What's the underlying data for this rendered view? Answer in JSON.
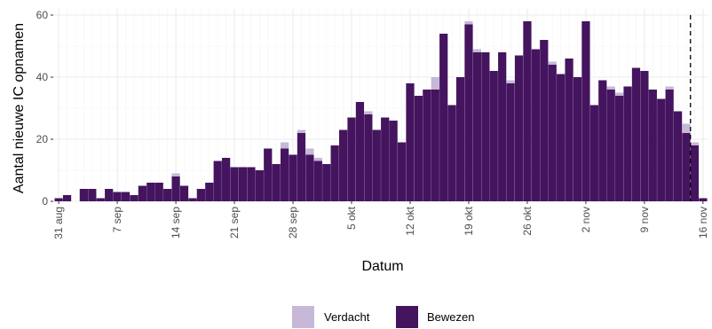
{
  "chart_data": {
    "type": "bar",
    "stacked": true,
    "xlabel": "Datum",
    "ylabel": "Aantal nieuwe IC opnamen",
    "ylim": [
      0,
      62
    ],
    "yticks": [
      0,
      20,
      40,
      60
    ],
    "grid": true,
    "legend_placement": "bottom",
    "x_start": "2020-08-31",
    "x_end": "2020-11-16",
    "x": [
      "2020-08-31",
      "2020-09-01",
      "2020-09-02",
      "2020-09-03",
      "2020-09-04",
      "2020-09-05",
      "2020-09-06",
      "2020-09-07",
      "2020-09-08",
      "2020-09-09",
      "2020-09-10",
      "2020-09-11",
      "2020-09-12",
      "2020-09-13",
      "2020-09-14",
      "2020-09-15",
      "2020-09-16",
      "2020-09-17",
      "2020-09-18",
      "2020-09-19",
      "2020-09-20",
      "2020-09-21",
      "2020-09-22",
      "2020-09-23",
      "2020-09-24",
      "2020-09-25",
      "2020-09-26",
      "2020-09-27",
      "2020-09-28",
      "2020-09-29",
      "2020-09-30",
      "2020-10-01",
      "2020-10-02",
      "2020-10-03",
      "2020-10-04",
      "2020-10-05",
      "2020-10-06",
      "2020-10-07",
      "2020-10-08",
      "2020-10-09",
      "2020-10-10",
      "2020-10-11",
      "2020-10-12",
      "2020-10-13",
      "2020-10-14",
      "2020-10-15",
      "2020-10-16",
      "2020-10-17",
      "2020-10-18",
      "2020-10-19",
      "2020-10-20",
      "2020-10-21",
      "2020-10-22",
      "2020-10-23",
      "2020-10-24",
      "2020-10-25",
      "2020-10-26",
      "2020-10-27",
      "2020-10-28",
      "2020-10-29",
      "2020-10-30",
      "2020-10-31",
      "2020-11-01",
      "2020-11-02",
      "2020-11-03",
      "2020-11-04",
      "2020-11-05",
      "2020-11-06",
      "2020-11-07",
      "2020-11-08",
      "2020-11-09",
      "2020-11-10",
      "2020-11-11",
      "2020-11-12",
      "2020-11-13",
      "2020-11-14",
      "2020-11-15",
      "2020-11-16"
    ],
    "x_tick_labels": [
      {
        "date": "2020-08-31",
        "label": "31 aug"
      },
      {
        "date": "2020-09-07",
        "label": "7 sep"
      },
      {
        "date": "2020-09-14",
        "label": "14 sep"
      },
      {
        "date": "2020-09-21",
        "label": "21 sep"
      },
      {
        "date": "2020-09-28",
        "label": "28 sep"
      },
      {
        "date": "2020-10-05",
        "label": "5 okt"
      },
      {
        "date": "2020-10-12",
        "label": "12 okt"
      },
      {
        "date": "2020-10-19",
        "label": "19 okt"
      },
      {
        "date": "2020-10-26",
        "label": "26 okt"
      },
      {
        "date": "2020-11-02",
        "label": "2 nov"
      },
      {
        "date": "2020-11-09",
        "label": "9 nov"
      },
      {
        "date": "2020-11-16",
        "label": "16 nov"
      }
    ],
    "series": [
      {
        "name": "Bewezen",
        "color": "#45145f",
        "values": [
          1,
          2,
          0,
          4,
          4,
          1,
          4,
          3,
          3,
          2,
          5,
          6,
          6,
          4,
          8,
          5,
          1,
          4,
          6,
          13,
          14,
          11,
          11,
          11,
          10,
          17,
          12,
          17,
          15,
          22,
          15,
          13,
          12,
          18,
          23,
          27,
          32,
          28,
          23,
          27,
          26,
          19,
          38,
          34,
          36,
          36,
          54,
          31,
          40,
          57,
          48,
          48,
          42,
          48,
          38,
          47,
          58,
          49,
          52,
          44,
          41,
          46,
          40,
          58,
          31,
          39,
          36,
          34,
          37,
          43,
          42,
          36,
          33,
          36,
          29,
          22,
          18,
          1
        ]
      },
      {
        "name": "Verdacht",
        "color": "#c6b8d6",
        "values": [
          0,
          0,
          0,
          0,
          0,
          0,
          0,
          0,
          0,
          0,
          0,
          0,
          0,
          0,
          1,
          0,
          0,
          0,
          0,
          0,
          0,
          0,
          0,
          0,
          0,
          0,
          0,
          2,
          0,
          1,
          2,
          1,
          0,
          0,
          0,
          0,
          0,
          1,
          0,
          0,
          0,
          0,
          0,
          0,
          0,
          4,
          0,
          0,
          0,
          1,
          1,
          0,
          0,
          0,
          1,
          0,
          0,
          0,
          0,
          1,
          0,
          0,
          0,
          0,
          0,
          0,
          1,
          1,
          0,
          0,
          0,
          0,
          0,
          1,
          0,
          3,
          1,
          0
        ]
      }
    ],
    "reference_line": {
      "date": "2020-11-14",
      "style": "dashed"
    },
    "legend": {
      "entries": [
        "Verdacht",
        "Bewezen"
      ]
    }
  }
}
